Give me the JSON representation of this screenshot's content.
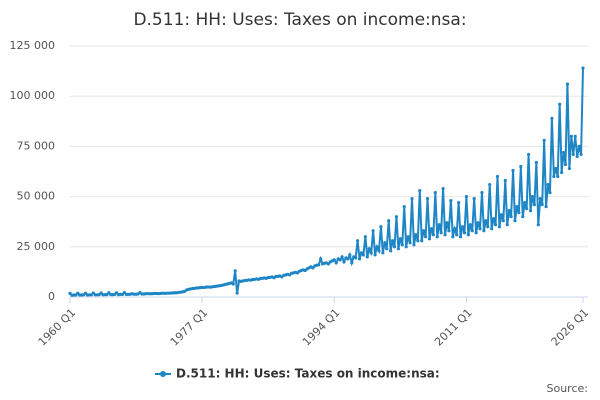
{
  "chart_data": {
    "type": "line",
    "title": "D.511: HH: Uses: Taxes on income:nsa:",
    "source": "Source:",
    "categories": [
      "1960 Q1",
      null,
      null,
      null,
      null,
      null,
      null,
      null,
      null,
      null,
      null,
      null,
      null,
      null,
      null,
      null,
      null,
      null,
      null,
      null,
      null,
      null,
      null,
      null,
      null,
      null,
      null,
      null,
      null,
      null,
      null,
      null,
      null,
      null,
      null,
      null,
      null,
      null,
      null,
      null,
      null,
      null,
      null,
      null,
      null,
      null,
      null,
      null,
      null,
      null,
      null,
      null,
      null,
      null,
      null,
      null,
      null,
      null,
      null,
      null,
      null,
      null,
      null,
      null,
      null,
      null,
      null,
      null,
      "1977 Q1",
      null,
      null,
      null,
      null,
      null,
      null,
      null,
      null,
      null,
      null,
      null,
      null,
      null,
      null,
      null,
      null,
      null,
      null,
      null,
      null,
      null,
      null,
      null,
      null,
      null,
      null,
      null,
      null,
      null,
      null,
      null,
      null,
      null,
      null,
      null,
      null,
      null,
      null,
      null,
      null,
      null,
      null,
      null,
      null,
      null,
      null,
      null,
      null,
      null,
      null,
      null,
      null,
      null,
      null,
      null,
      null,
      null,
      null,
      null,
      null,
      null,
      null,
      null,
      null,
      null,
      null,
      null,
      "1994 Q1",
      null,
      null,
      null,
      null,
      null,
      null,
      null,
      null,
      null,
      null,
      null,
      null,
      null,
      null,
      null,
      null,
      null,
      null,
      null,
      null,
      null,
      null,
      null,
      null,
      null,
      null,
      null,
      null,
      null,
      null,
      null,
      null,
      null,
      null,
      null,
      null,
      null,
      null,
      null,
      null,
      null,
      null,
      null,
      null,
      null,
      null,
      null,
      null,
      null,
      null,
      null,
      null,
      null,
      null,
      null,
      null,
      null,
      null,
      null,
      null,
      null,
      null,
      null,
      null,
      null,
      null,
      null,
      "2011 Q1",
      null,
      null,
      null,
      null,
      null,
      null,
      null,
      null,
      null,
      null,
      null,
      null,
      null,
      null,
      null,
      null,
      null,
      null,
      null,
      null,
      null,
      null,
      null,
      null,
      null,
      null,
      null,
      null,
      null,
      null,
      null,
      null,
      null,
      null,
      null,
      null,
      null,
      null,
      null,
      null,
      null,
      null,
      null,
      null,
      null,
      null,
      null,
      null,
      null,
      null,
      null,
      null,
      null,
      null,
      null,
      null,
      null,
      null,
      null,
      "2026 Q1"
    ],
    "series": [
      {
        "name": "D.511: HH: Uses: Taxes on income:nsa:",
        "color": "#1f86c6",
        "values": [
          1800,
          900,
          1000,
          1000,
          1900,
          1000,
          1000,
          1100,
          1900,
          1000,
          1100,
          1100,
          2000,
          1100,
          1100,
          1200,
          2000,
          1100,
          1200,
          1200,
          2100,
          1200,
          1200,
          1300,
          2100,
          1200,
          1300,
          1300,
          2200,
          1300,
          1300,
          1400,
          1600,
          1400,
          1400,
          1500,
          2200,
          1500,
          1500,
          1600,
          1700,
          1600,
          1600,
          1700,
          1800,
          1700,
          1700,
          1800,
          1900,
          1800,
          1900,
          1900,
          2000,
          2000,
          2100,
          2100,
          2300,
          2400,
          2600,
          2800,
          3500,
          3800,
          4000,
          4200,
          4300,
          4500,
          4500,
          4700,
          4800,
          4700,
          4900,
          5000,
          4900,
          5000,
          5200,
          5300,
          5500,
          5600,
          5800,
          6000,
          6300,
          6500,
          6800,
          7000,
          6500,
          13000,
          2000,
          8000,
          7800,
          8000,
          8200,
          8300,
          8500,
          8400,
          8700,
          8800,
          9000,
          8800,
          9200,
          9300,
          9500,
          9300,
          9700,
          9800,
          10000,
          9600,
          10200,
          10300,
          10500,
          10000,
          10800,
          11000,
          11300,
          11000,
          11800,
          12000,
          12300,
          12000,
          12800,
          13200,
          13500,
          13200,
          14000,
          14500,
          15000,
          14500,
          15500,
          15800,
          16000,
          19000,
          16500,
          16800,
          17000,
          16500,
          17500,
          18000,
          18500,
          17000,
          19000,
          18500,
          20000,
          17500,
          19500,
          19000,
          21000,
          17000,
          20000,
          19500,
          28000,
          19000,
          22000,
          21000,
          30000,
          20000,
          24000,
          22000,
          33000,
          21000,
          25000,
          23000,
          35000,
          22000,
          27000,
          24000,
          38000,
          23000,
          28000,
          25000,
          40000,
          24000,
          29000,
          26000,
          45000,
          25000,
          30000,
          27000,
          49000,
          26000,
          31000,
          28000,
          53000,
          28000,
          33000,
          30000,
          49000,
          29000,
          34000,
          31000,
          52000,
          30000,
          36000,
          32000,
          54000,
          31000,
          37000,
          33000,
          48000,
          30000,
          34000,
          31000,
          47000,
          30000,
          35000,
          32000,
          50000,
          31000,
          36000,
          33000,
          49000,
          32000,
          37000,
          34000,
          52000,
          33000,
          38000,
          35000,
          56000,
          34000,
          39000,
          36000,
          60000,
          35000,
          41000,
          38000,
          58000,
          36000,
          43000,
          40000,
          63000,
          38000,
          45000,
          42000,
          65000,
          40000,
          47000,
          44000,
          71000,
          43000,
          50000,
          46000,
          67000,
          36000,
          49000,
          46000,
          78000,
          45000,
          56000,
          52000,
          89000,
          60000,
          64000,
          60000,
          96000,
          62000,
          72000,
          66000,
          106000,
          64000,
          80000,
          71000,
          80000,
          70000,
          75000,
          71000,
          114000
        ]
      }
    ],
    "ylim": [
      0,
      125000
    ],
    "yticks": [
      0,
      {
        "value": 25000,
        "label": "25 000"
      },
      {
        "value": 50000,
        "label": "50 000"
      },
      {
        "value": 75000,
        "label": "75 000"
      },
      {
        "value": 100000,
        "label": "100 000"
      },
      {
        "value": 125000,
        "label": "125 000"
      }
    ],
    "grid": true
  }
}
